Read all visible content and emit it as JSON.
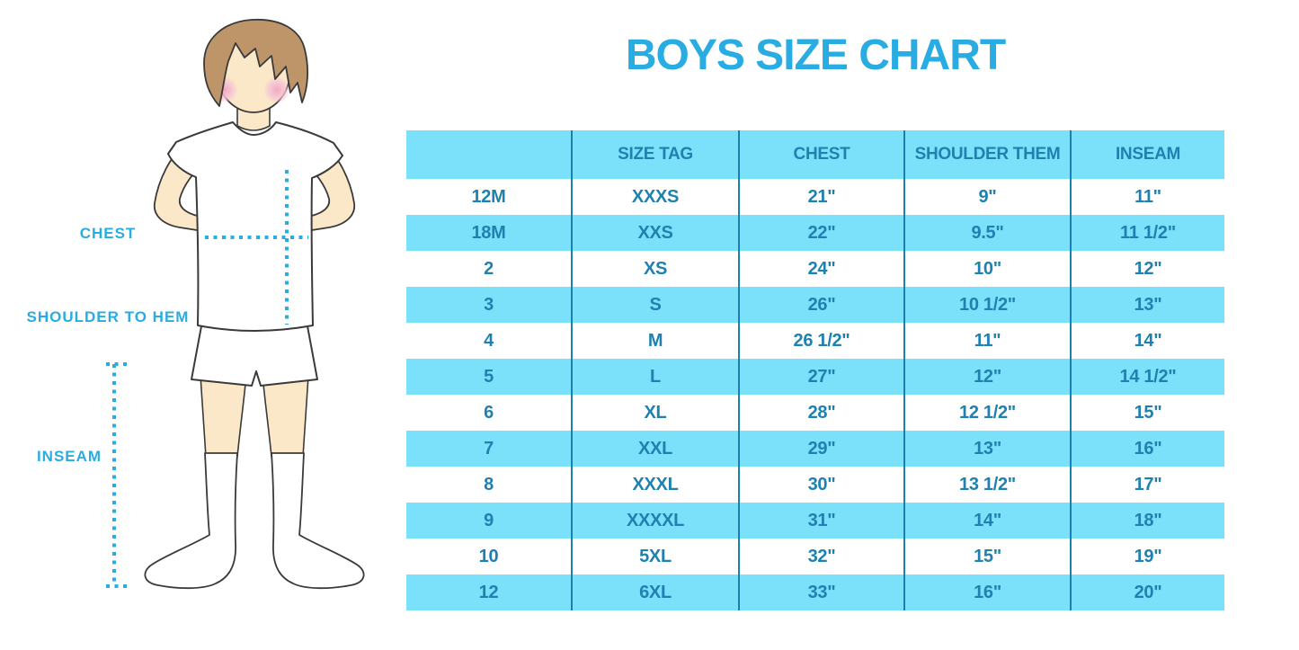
{
  "title": "BOYS SIZE CHART",
  "figure": {
    "labels": {
      "chest": "CHEST",
      "shoulder_to_hem": "SHOULDER TO HEM",
      "inseam": "INSEAM"
    }
  },
  "chart_data": {
    "type": "table",
    "columns": [
      "",
      "SIZE TAG",
      "CHEST",
      "SHOULDER THEM",
      "INSEAM"
    ],
    "rows": [
      [
        "12M",
        "XXXS",
        "21\"",
        "9\"",
        "11\""
      ],
      [
        "18M",
        "XXS",
        "22\"",
        "9.5\"",
        "11 1/2\""
      ],
      [
        "2",
        "XS",
        "24\"",
        "10\"",
        "12\""
      ],
      [
        "3",
        "S",
        "26\"",
        "10 1/2\"",
        "13\""
      ],
      [
        "4",
        "M",
        "26 1/2\"",
        "11\"",
        "14\""
      ],
      [
        "5",
        "L",
        "27\"",
        "12\"",
        "14 1/2\""
      ],
      [
        "6",
        "XL",
        "28\"",
        "12 1/2\"",
        "15\""
      ],
      [
        "7",
        "XXL",
        "29\"",
        "13\"",
        "16\""
      ],
      [
        "8",
        "XXXL",
        "30\"",
        "13 1/2\"",
        "17\""
      ],
      [
        "9",
        "XXXXL",
        "31\"",
        "14\"",
        "18\""
      ],
      [
        "10",
        "5XL",
        "32\"",
        "15\"",
        "19\""
      ],
      [
        "12",
        "6XL",
        "33\"",
        "16\"",
        "20\""
      ]
    ],
    "row_striping": "first data row white, then alternating light-blue/white",
    "legend_position": "none",
    "grid": "vertical dividers only"
  },
  "colors": {
    "accent_cyan": "#29ACE2",
    "row_blue": "#7BE1FA",
    "table_text": "#1E81B0",
    "divider": "#1B80AE",
    "skin": "#FBE8C8",
    "hair": "#BD9569",
    "cheek": "#F2A9C4",
    "outline": "#3A3A3A"
  }
}
